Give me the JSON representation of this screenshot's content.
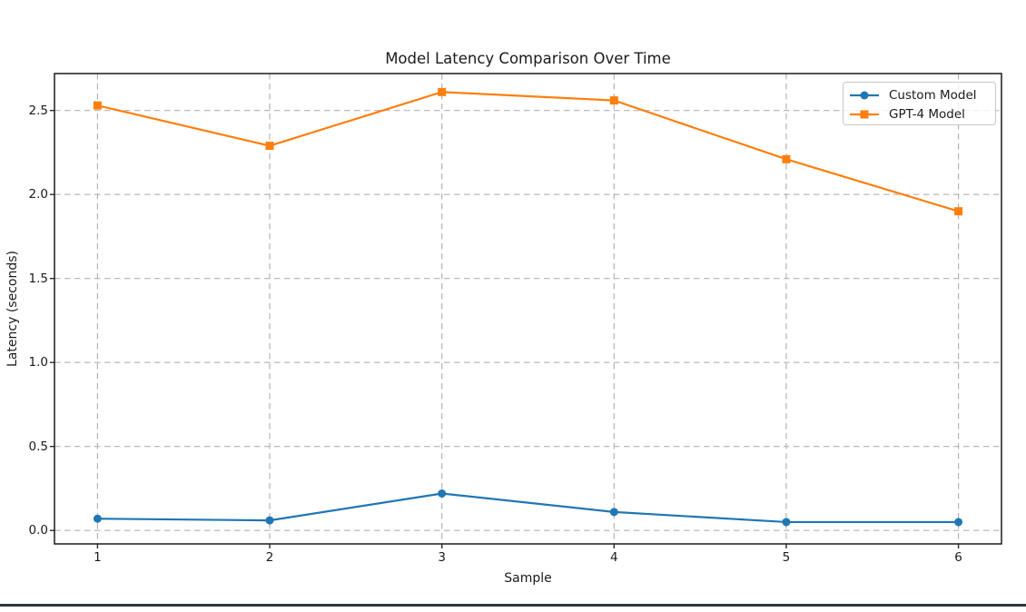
{
  "chart_data": {
    "type": "line",
    "title": "Model Latency Comparison Over Time",
    "xlabel": "Sample",
    "ylabel": "Latency (seconds)",
    "x": [
      1,
      2,
      3,
      4,
      5,
      6
    ],
    "series": [
      {
        "name": "Custom Model",
        "color": "#1f77b4",
        "marker": "circle",
        "values": [
          0.07,
          0.06,
          0.22,
          0.11,
          0.05,
          0.05
        ]
      },
      {
        "name": "GPT-4 Model",
        "color": "#ff7f0e",
        "marker": "square",
        "values": [
          2.53,
          2.29,
          2.61,
          2.56,
          2.21,
          1.9
        ]
      }
    ],
    "xlim": [
      0.75,
      6.25
    ],
    "ylim": [
      -0.08,
      2.72
    ],
    "xticks": [
      1,
      2,
      3,
      4,
      5,
      6
    ],
    "xtick_labels": [
      "1",
      "2",
      "3",
      "4",
      "5",
      "6"
    ],
    "yticks": [
      0.0,
      0.5,
      1.0,
      1.5,
      2.0,
      2.5
    ],
    "ytick_labels": [
      "0.0",
      "0.5",
      "1.0",
      "1.5",
      "2.0",
      "2.5"
    ],
    "grid": true,
    "grid_style": "dashed",
    "legend_position": "upper right",
    "colors": {
      "grid": "#b3b3b3",
      "spine": "#2a2a2a",
      "text": "#1b1b1b",
      "legend_border": "#c9c9c9",
      "divider": "#31363c"
    }
  }
}
